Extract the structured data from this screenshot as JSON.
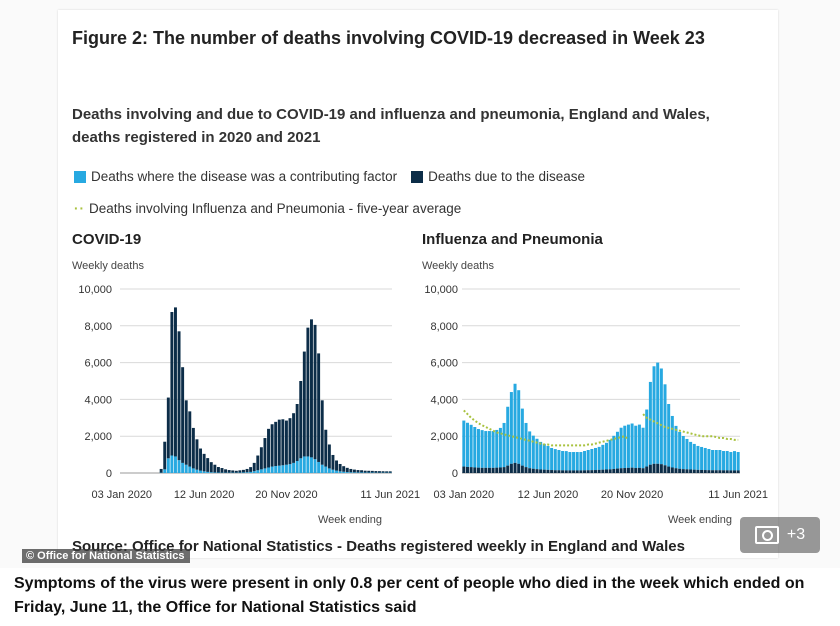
{
  "figure_title": "Figure 2: The number of deaths involving COVID-19 decreased in Week 23",
  "subtitle": "Deaths involving and due to COVID-19 and influenza and pneumonia, England and Wales, deaths registered in 2020 and 2021",
  "legend": {
    "contributing": "Deaths where the disease was a contributing factor",
    "due": "Deaths due to the disease",
    "average": "Deaths involving Influenza and Pneumonia - five-year average"
  },
  "colors": {
    "contributing": "#27a9e1",
    "due": "#0c2d48",
    "average": "#a9c23f",
    "grid": "#d9d9d9"
  },
  "source": "Source: Office for National Statistics - Deaths registered weekly in England and Wales",
  "credit": "© Office for National Statistics",
  "gallery_count": "+3",
  "caption": "Symptoms of the virus were present in only 0.8 per cent of people who died in the week which ended on Friday, June 11, the Office for National Statistics said",
  "chart_data": [
    {
      "type": "bar",
      "title": "COVID-19",
      "ylabel": "Weekly deaths",
      "xlabel": "Week ending",
      "ylim": [
        0,
        10000
      ],
      "yticks": [
        "0",
        "2,000",
        "4,000",
        "6,000",
        "8,000",
        "10,000"
      ],
      "ytick_values": [
        0,
        2000,
        4000,
        6000,
        8000,
        10000
      ],
      "xtick_labels": [
        "03 Jan 2020",
        "12 Jun 2020",
        "20 Nov 2020",
        "11 Jun 2021"
      ],
      "xtick_weeks": [
        0,
        23,
        46,
        75
      ],
      "series": [
        {
          "name": "Deaths where the disease was a contributing factor",
          "values": [
            0,
            0,
            0,
            0,
            0,
            0,
            0,
            0,
            0,
            0,
            0,
            20,
            200,
            800,
            950,
            900,
            700,
            550,
            450,
            350,
            250,
            180,
            130,
            90,
            60,
            40,
            30,
            25,
            20,
            20,
            20,
            20,
            20,
            25,
            30,
            40,
            60,
            100,
            150,
            200,
            250,
            300,
            350,
            380,
            400,
            420,
            450,
            480,
            550,
            650,
            800,
            900,
            900,
            850,
            750,
            600,
            450,
            350,
            250,
            180,
            130,
            90,
            70,
            50,
            40,
            35,
            30,
            30,
            25,
            25,
            25,
            20,
            20,
            20,
            20,
            20
          ]
        },
        {
          "name": "Deaths due to the disease",
          "values": [
            0,
            0,
            0,
            0,
            0,
            0,
            0,
            0,
            0,
            0,
            0,
            200,
            1500,
            3300,
            7800,
            8100,
            7000,
            5200,
            3500,
            3000,
            2200,
            1650,
            1200,
            950,
            750,
            550,
            420,
            300,
            250,
            180,
            140,
            120,
            100,
            120,
            140,
            180,
            260,
            450,
            800,
            1200,
            1650,
            2100,
            2300,
            2400,
            2500,
            2500,
            2400,
            2500,
            2700,
            3100,
            4200,
            5700,
            7000,
            7500,
            7300,
            5900,
            3500,
            2000,
            1300,
            800,
            550,
            400,
            300,
            230,
            180,
            150,
            130,
            120,
            100,
            95,
            90,
            85,
            80,
            75,
            70,
            70
          ]
        }
      ]
    },
    {
      "type": "bar",
      "title": "Influenza and Pneumonia",
      "ylabel": "Weekly deaths",
      "xlabel": "Week ending",
      "ylim": [
        0,
        10000
      ],
      "yticks": [
        "0",
        "2,000",
        "4,000",
        "6,000",
        "8,000",
        "10,000"
      ],
      "ytick_values": [
        0,
        2000,
        4000,
        6000,
        8000,
        10000
      ],
      "xtick_labels": [
        "03 Jan 2020",
        "12 Jun 2020",
        "20 Nov 2020",
        "11 Jun 2021"
      ],
      "xtick_weeks": [
        0,
        23,
        46,
        75
      ],
      "series": [
        {
          "name": "Deaths where the disease was a contributing factor",
          "values": [
            2500,
            2400,
            2300,
            2200,
            2100,
            2050,
            2000,
            2000,
            2000,
            2050,
            2150,
            2400,
            3200,
            3900,
            4300,
            4000,
            3100,
            2400,
            2000,
            1800,
            1650,
            1500,
            1400,
            1300,
            1200,
            1150,
            1100,
            1050,
            1050,
            1000,
            1000,
            1000,
            1000,
            1050,
            1100,
            1150,
            1200,
            1250,
            1350,
            1450,
            1600,
            1800,
            2000,
            2200,
            2300,
            2350,
            2400,
            2300,
            2350,
            2200,
            3100,
            4500,
            5300,
            5500,
            5200,
            4400,
            3400,
            2800,
            2300,
            2000,
            1800,
            1650,
            1500,
            1400,
            1300,
            1250,
            1200,
            1150,
            1100,
            1100,
            1100,
            1050,
            1050,
            1000,
            1050,
            1000
          ]
        },
        {
          "name": "Deaths due to the disease",
          "values": [
            350,
            330,
            320,
            300,
            290,
            280,
            280,
            280,
            280,
            290,
            300,
            320,
            400,
            500,
            550,
            500,
            400,
            320,
            260,
            230,
            210,
            190,
            180,
            170,
            160,
            150,
            150,
            145,
            140,
            140,
            140,
            140,
            140,
            145,
            150,
            155,
            160,
            170,
            180,
            190,
            200,
            220,
            240,
            260,
            270,
            280,
            290,
            270,
            280,
            260,
            350,
            450,
            500,
            500,
            480,
            420,
            350,
            300,
            260,
            230,
            210,
            200,
            190,
            180,
            170,
            165,
            160,
            155,
            150,
            150,
            150,
            145,
            145,
            140,
            140,
            140
          ]
        },
        {
          "name": "Deaths involving Influenza and Pneumonia - five-year average",
          "style": "dotted",
          "values": [
            3400,
            3200,
            3000,
            2850,
            2700,
            2600,
            2500,
            2400,
            2300,
            2200,
            2150,
            2100,
            2050,
            2000,
            1950,
            1900,
            1850,
            1800,
            1750,
            1700,
            1650,
            1600,
            1550,
            1550,
            1500,
            1500,
            1500,
            1500,
            1500,
            1500,
            1500,
            1500,
            1500,
            1500,
            1550,
            1550,
            1600,
            1650,
            1700,
            1750,
            1800,
            1850,
            1900,
            1950,
            2000,
            1800,
            null,
            null,
            null,
            3200,
            3000,
            2900,
            2800,
            2700,
            2600,
            2500,
            2450,
            2400,
            2350,
            2300,
            2250,
            2200,
            2150,
            2100,
            2050,
            2000,
            2000,
            2000,
            2000,
            1950,
            1900,
            1900,
            1850,
            1850,
            1800,
            1800
          ]
        }
      ]
    }
  ]
}
